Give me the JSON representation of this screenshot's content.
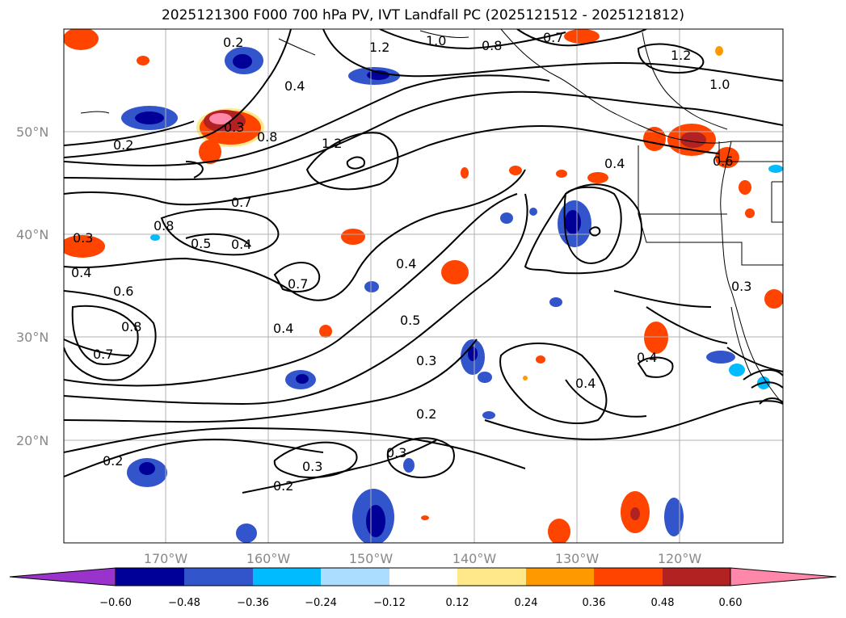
{
  "title": "2025121300 F000 700 hPa PV, IVT Landfall PC (2025121512 - 2025121812)",
  "lat_labels": [
    "50°N",
    "40°N",
    "30°N",
    "20°N"
  ],
  "lon_labels": [
    "170°W",
    "160°W",
    "150°W",
    "140°W",
    "130°W",
    "120°W"
  ],
  "contour_labels": [
    "0.2",
    "1.2",
    "1.0",
    "0.8",
    "0.7",
    "0.4",
    "1.2",
    "1.0",
    "0.3",
    "0.8",
    "0.2",
    "1.2",
    "0.4",
    "0.6",
    "0.7",
    "0.8",
    "0.5",
    "0.4",
    "0.3",
    "0.4",
    "0.4",
    "0.7",
    "0.6",
    "0.8",
    "0.7",
    "0.4",
    "0.5",
    "0.3",
    "0.2",
    "0.4",
    "0.4",
    "0.3",
    "0.3",
    "0.2",
    "0.3",
    "0.2"
  ],
  "colorbar": {
    "ticks": [
      "−0.60",
      "−0.48",
      "−0.36",
      "−0.24",
      "−0.12",
      "0.12",
      "0.24",
      "0.36",
      "0.48",
      "0.60"
    ],
    "colors": [
      "#9933cc",
      "#000099",
      "#3355cc",
      "#00bbff",
      "#aaddff",
      "#ffffff",
      "#ffe88a",
      "#ff9900",
      "#ff4400",
      "#b22222",
      "#ff88aa"
    ]
  }
}
